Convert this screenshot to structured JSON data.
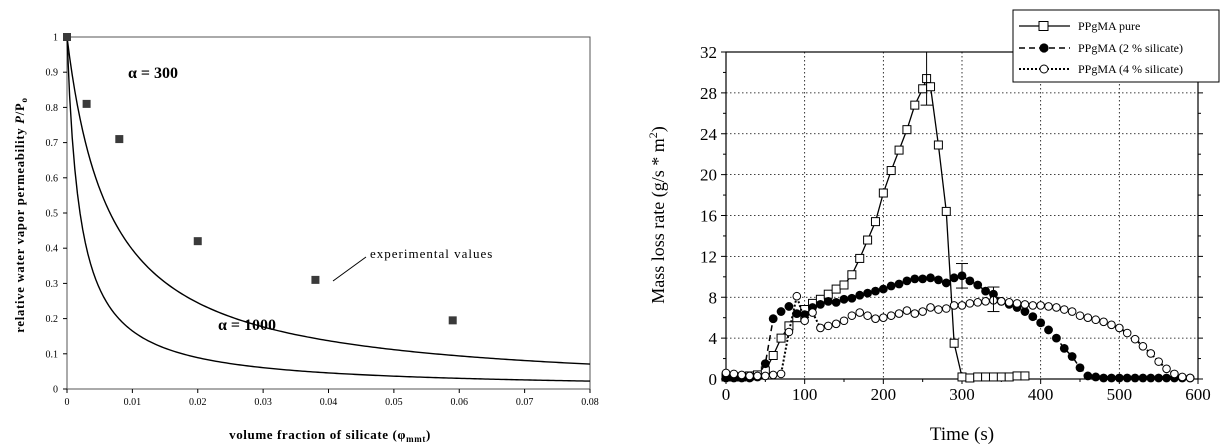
{
  "chart_data": [
    {
      "type": "line",
      "xlabel": "volume fraction of silicate (φmmt)",
      "ylabel": "relative water vapor permeability P/P₀",
      "xlim": [
        0,
        0.08
      ],
      "ylim": [
        0,
        1
      ],
      "xticks": [
        "0",
        "0.01",
        "0.02",
        "0.03",
        "0.04",
        "0.05",
        "0.06",
        "0.07",
        "0.08"
      ],
      "yticks": [
        "0",
        "0.1",
        "0.2",
        "0.3",
        "0.4",
        "0.5",
        "0.6",
        "0.7",
        "0.8",
        "0.9",
        "1"
      ],
      "grid": false,
      "series": [
        {
          "name": "α = 300",
          "kind": "line",
          "alpha": 300
        },
        {
          "name": "α = 1000",
          "kind": "line",
          "alpha": 1000
        },
        {
          "name": "experimental values",
          "kind": "scatter",
          "x": [
            0,
            0.003,
            0.008,
            0.02,
            0.038,
            0.059
          ],
          "y": [
            1.0,
            0.81,
            0.71,
            0.42,
            0.31,
            0.195
          ]
        }
      ]
    },
    {
      "type": "line",
      "xlabel": "Time (s)",
      "ylabel": "Mass loss rate (g/s * m²)",
      "xlim": [
        0,
        600
      ],
      "ylim": [
        0,
        32
      ],
      "xticks": [
        "0",
        "100",
        "200",
        "300",
        "400",
        "500",
        "600"
      ],
      "yticks": [
        "0",
        "4",
        "8",
        "12",
        "16",
        "20",
        "24",
        "28",
        "32"
      ],
      "grid": true,
      "legend": "top-right",
      "series": [
        {
          "name": "PPgMA pure",
          "style": "solid",
          "marker": "open-square",
          "x": [
            0,
            10,
            20,
            30,
            40,
            50,
            60,
            70,
            80,
            90,
            100,
            110,
            120,
            130,
            140,
            150,
            160,
            170,
            180,
            190,
            200,
            210,
            220,
            230,
            240,
            250,
            255,
            260,
            270,
            280,
            290,
            300,
            310,
            320,
            330,
            340,
            350,
            360,
            370,
            380
          ],
          "y": [
            0.2,
            0.2,
            0.2,
            0.3,
            0.4,
            0.8,
            2.3,
            4.0,
            5.2,
            6.0,
            6.8,
            7.4,
            7.8,
            8.3,
            8.8,
            9.2,
            10.2,
            11.8,
            13.6,
            15.4,
            18.2,
            20.4,
            22.4,
            24.4,
            26.8,
            28.4,
            29.4,
            28.6,
            22.9,
            16.4,
            3.5,
            0.2,
            0.1,
            0.2,
            0.2,
            0.2,
            0.2,
            0.2,
            0.3,
            0.3
          ]
        },
        {
          "name": "PPgMA (2 % silicate)",
          "style": "dashed",
          "marker": "filled-circle",
          "x": [
            0,
            10,
            20,
            30,
            40,
            50,
            60,
            70,
            80,
            90,
            100,
            110,
            120,
            130,
            140,
            150,
            160,
            170,
            180,
            190,
            200,
            210,
            220,
            230,
            240,
            250,
            260,
            270,
            280,
            290,
            300,
            310,
            320,
            330,
            340,
            350,
            360,
            370,
            380,
            390,
            400,
            410,
            420,
            430,
            440,
            450,
            460,
            470,
            480,
            490,
            500,
            510,
            520,
            530,
            540,
            550,
            560,
            570,
            580,
            590
          ],
          "y": [
            0.1,
            0.1,
            0.1,
            0.1,
            0.2,
            1.5,
            5.9,
            6.6,
            7.1,
            6.4,
            6.3,
            7.0,
            7.3,
            7.6,
            7.5,
            7.8,
            7.9,
            8.2,
            8.4,
            8.6,
            8.8,
            9.1,
            9.3,
            9.6,
            9.8,
            9.8,
            9.9,
            9.7,
            9.4,
            9.9,
            10.1,
            9.6,
            9.2,
            8.6,
            8.3,
            7.6,
            7.3,
            7.0,
            6.6,
            6.1,
            5.5,
            4.8,
            4.0,
            3.0,
            2.2,
            1.1,
            0.3,
            0.2,
            0.1,
            0.1,
            0.1,
            0.1,
            0.1,
            0.1,
            0.1,
            0.1,
            0.1,
            0.1,
            0.1,
            0.1
          ]
        },
        {
          "name": "PPgMA (4 % silicate)",
          "style": "dotted",
          "marker": "open-circle",
          "x": [
            0,
            10,
            20,
            30,
            40,
            50,
            60,
            70,
            80,
            90,
            100,
            110,
            120,
            130,
            140,
            150,
            160,
            170,
            180,
            190,
            200,
            210,
            220,
            230,
            240,
            250,
            260,
            270,
            280,
            290,
            300,
            310,
            320,
            330,
            340,
            350,
            360,
            370,
            380,
            390,
            400,
            410,
            420,
            430,
            440,
            450,
            460,
            470,
            480,
            490,
            500,
            510,
            520,
            530,
            540,
            550,
            560,
            570,
            580,
            590
          ],
          "y": [
            0.6,
            0.5,
            0.4,
            0.3,
            0.3,
            0.3,
            0.4,
            0.5,
            4.6,
            8.1,
            5.7,
            6.5,
            5.0,
            5.2,
            5.4,
            5.7,
            6.2,
            6.5,
            6.2,
            5.9,
            6.0,
            6.2,
            6.4,
            6.7,
            6.4,
            6.6,
            7.0,
            6.8,
            6.9,
            7.2,
            7.2,
            7.4,
            7.5,
            7.6,
            7.7,
            7.6,
            7.5,
            7.4,
            7.3,
            7.2,
            7.2,
            7.1,
            7.0,
            6.8,
            6.6,
            6.2,
            6.0,
            5.8,
            5.6,
            5.3,
            5.0,
            4.5,
            3.9,
            3.2,
            2.5,
            1.7,
            1.0,
            0.5,
            0.2,
            0.1
          ]
        }
      ]
    }
  ],
  "chart1": {
    "ylabel_main": "relative water vapor permeability ",
    "ylabel_P": "P",
    "ylabel_slash": "/",
    "ylabel_P0": "P",
    "ylabel_sub0": "o",
    "xlabel_main": "volume fraction of silicate (",
    "xlabel_phi": "φ",
    "xlabel_sub": "mmt",
    "xlabel_close": ")",
    "curve1_label": "α = 300",
    "curve2_label": "α = 1000",
    "annotation": "experimental values"
  },
  "chart2": {
    "ylabel_main": "Mass loss rate (g/s * m",
    "ylabel_sup": "2",
    "ylabel_close": ")",
    "xlabel": "Time (s)",
    "legend": [
      "PPgMA pure",
      "PPgMA (2 % silicate)",
      "PPgMA (4 % silicate)"
    ]
  }
}
